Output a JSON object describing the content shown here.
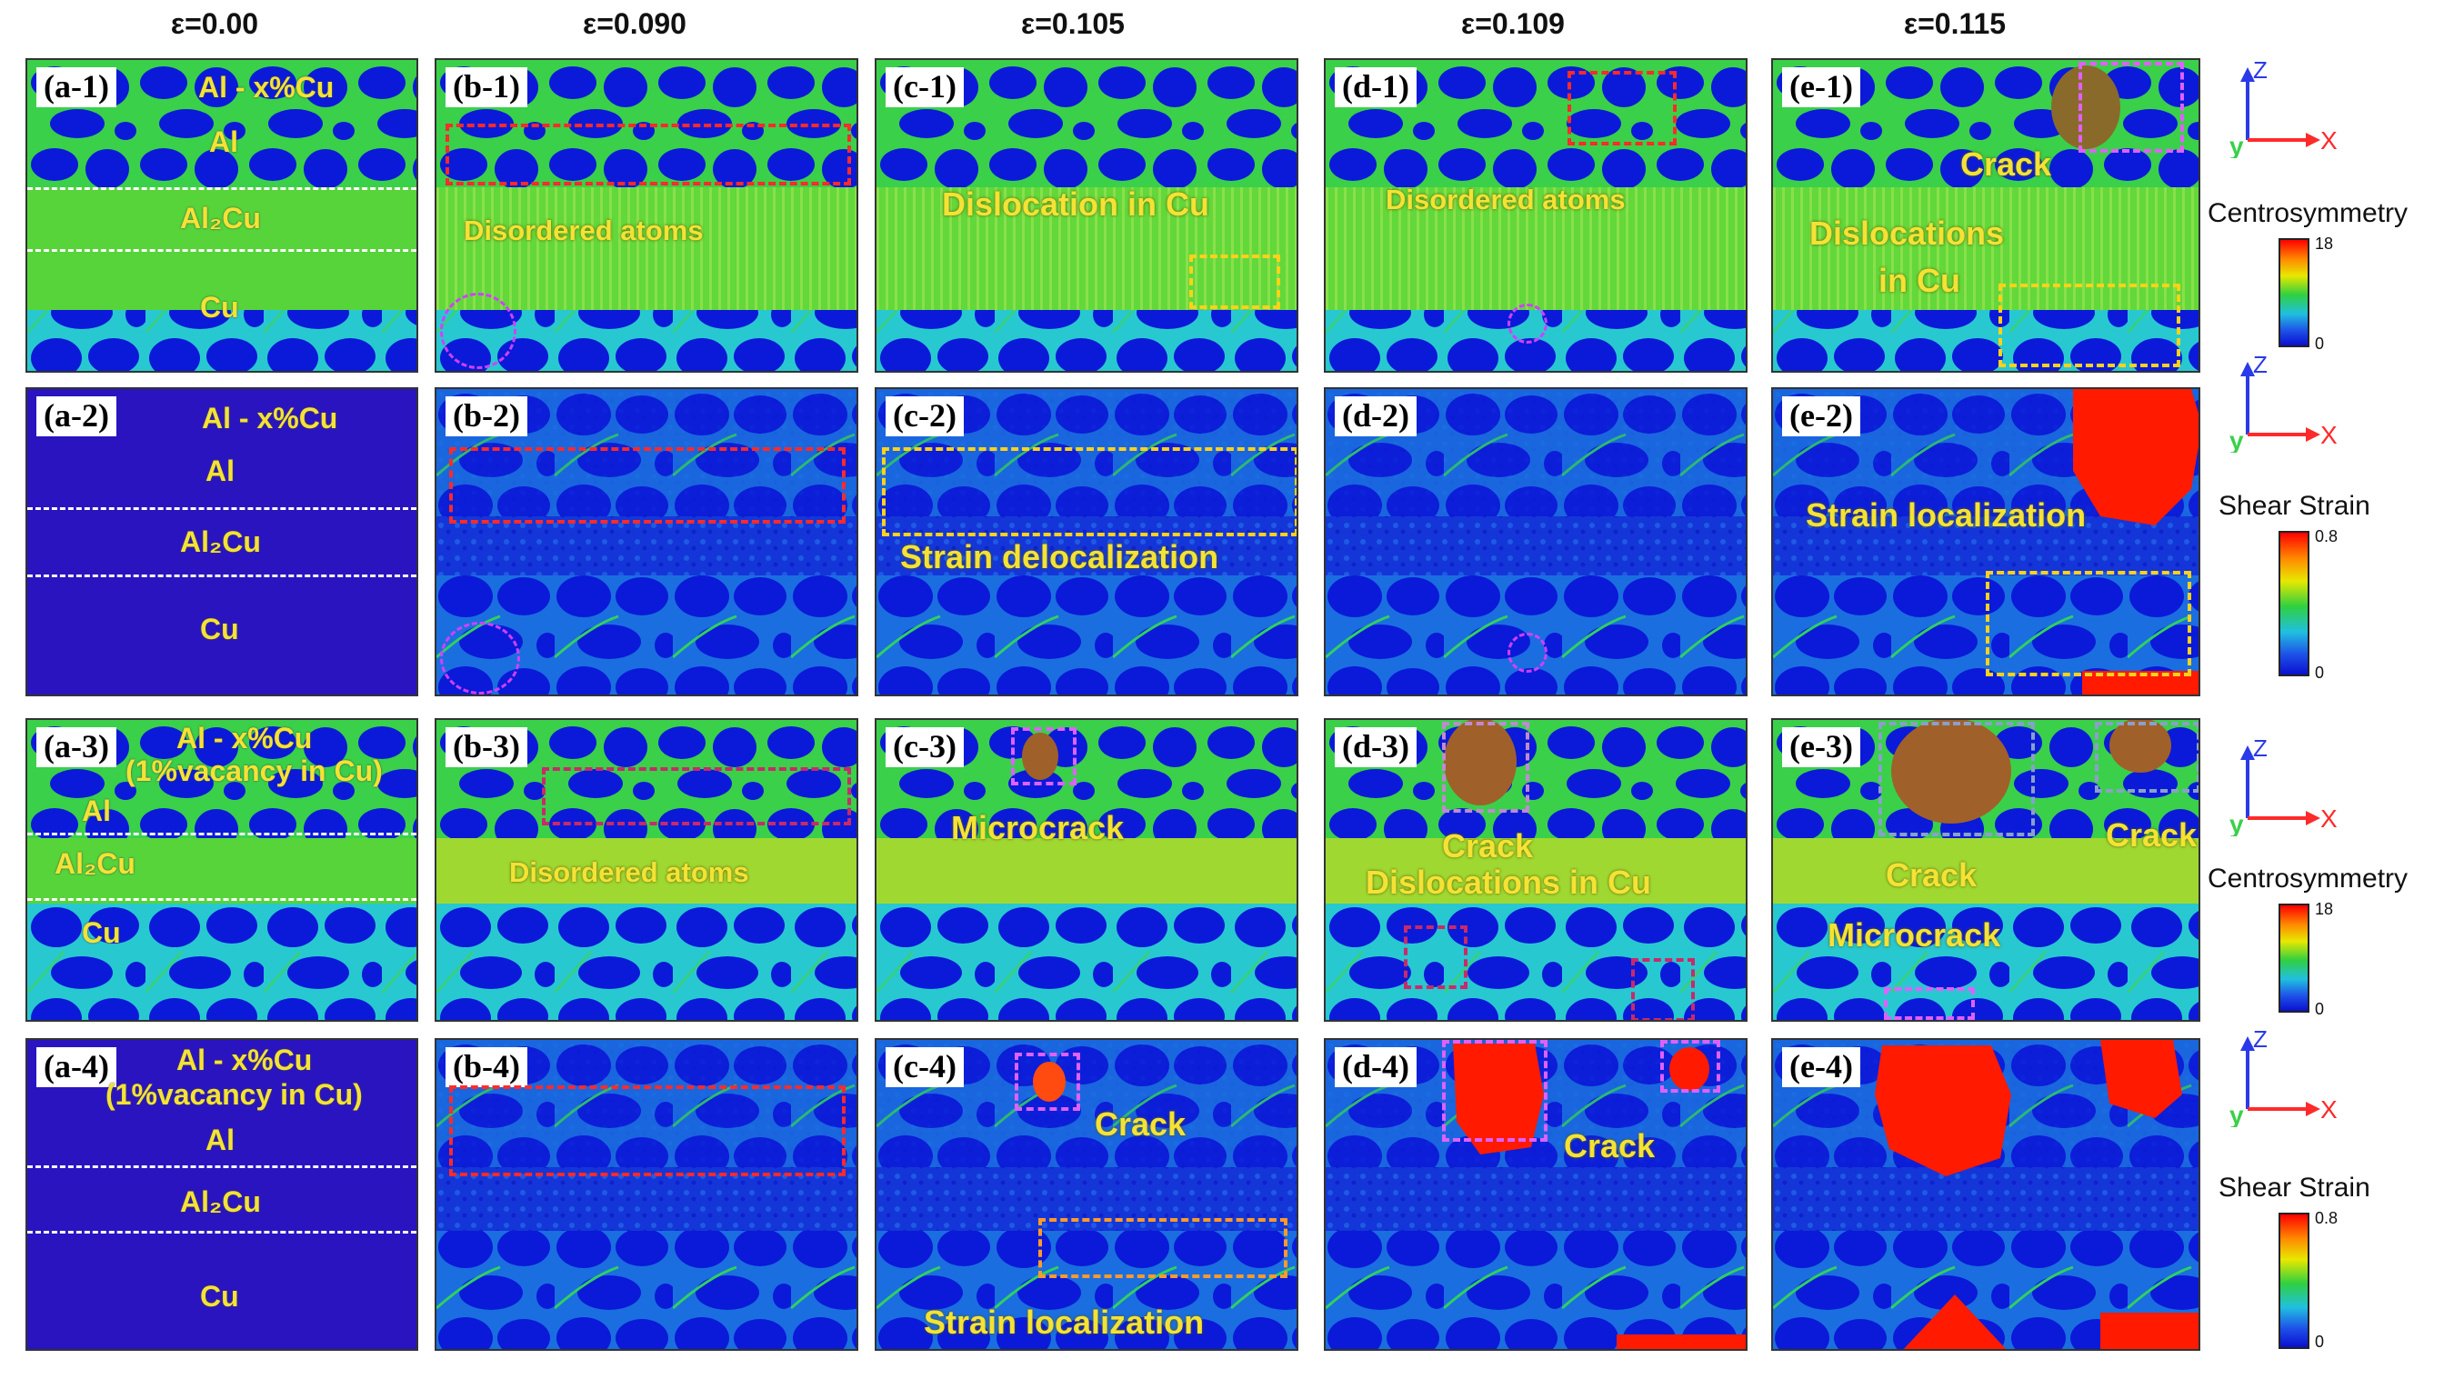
{
  "columns": [
    "ε=0.00",
    "ε=0.090",
    "ε=0.105",
    "ε=0.109",
    "ε=0.115"
  ],
  "labels": {
    "a1": "(a-1)",
    "b1": "(b-1)",
    "c1": "(c-1)",
    "d1": "(d-1)",
    "e1": "(e-1)",
    "a2": "(a-2)",
    "b2": "(b-2)",
    "c2": "(c-2)",
    "d2": "(d-2)",
    "e2": "(e-2)",
    "a3": "(a-3)",
    "b3": "(b-3)",
    "c3": "(c-3)",
    "d3": "(d-3)",
    "e3": "(e-3)",
    "a4": "(a-4)",
    "b4": "(b-4)",
    "c4": "(c-4)",
    "d4": "(d-4)",
    "e4": "(e-4)"
  },
  "layers": {
    "alloy": "Al - x%Cu",
    "alloy_vac_1": "Al - x%Cu",
    "alloy_vac_2": "(1%vacancy in Cu)",
    "al": "Al",
    "al2cu": "Al₂Cu",
    "cu": "Cu"
  },
  "annotations": {
    "disordered_b1": "Disordered atoms",
    "dislocation_c1": "Dislocation in Cu",
    "disordered_d1": "Disordered atoms",
    "crack_e1": "Crack",
    "dislocations_e1_a": "Dislocations",
    "dislocations_e1_b": "in Cu",
    "delocal_c2": "Strain delocalization",
    "local_e2": "Strain localization",
    "disordered_b3": "Disordered atoms",
    "microcrack_c3": "Microcrack",
    "crack_d3": "Crack",
    "dislocations_d3": "Dislocations in Cu",
    "crack_e3_a": "Crack",
    "crack_e3_b": "Crack",
    "microcrack_e3": "Microcrack",
    "crack_c4": "Crack",
    "local_c4": "Strain localization",
    "crack_d4": "Crack"
  },
  "legends": {
    "centro_1": "Centrosymmetry",
    "shear_1": "Shear Strain",
    "centro_2": "Centrosymmetry",
    "shear_2": "Shear Strain",
    "centro_max": "18",
    "centro_min": "0",
    "shear_max": "0.8",
    "shear_min": "0",
    "axis_z": "Z",
    "axis_x": "X",
    "axis_y": "y"
  },
  "colors": {
    "bg_blue": "#0a1ad8",
    "grain_green": "#3ad04a",
    "boundary_cyan": "#28c8d0",
    "crack_red": "#ff1a00",
    "box_red": "#ff2a2a",
    "box_yellow": "#ffd21a",
    "box_pink": "#e060ff"
  }
}
